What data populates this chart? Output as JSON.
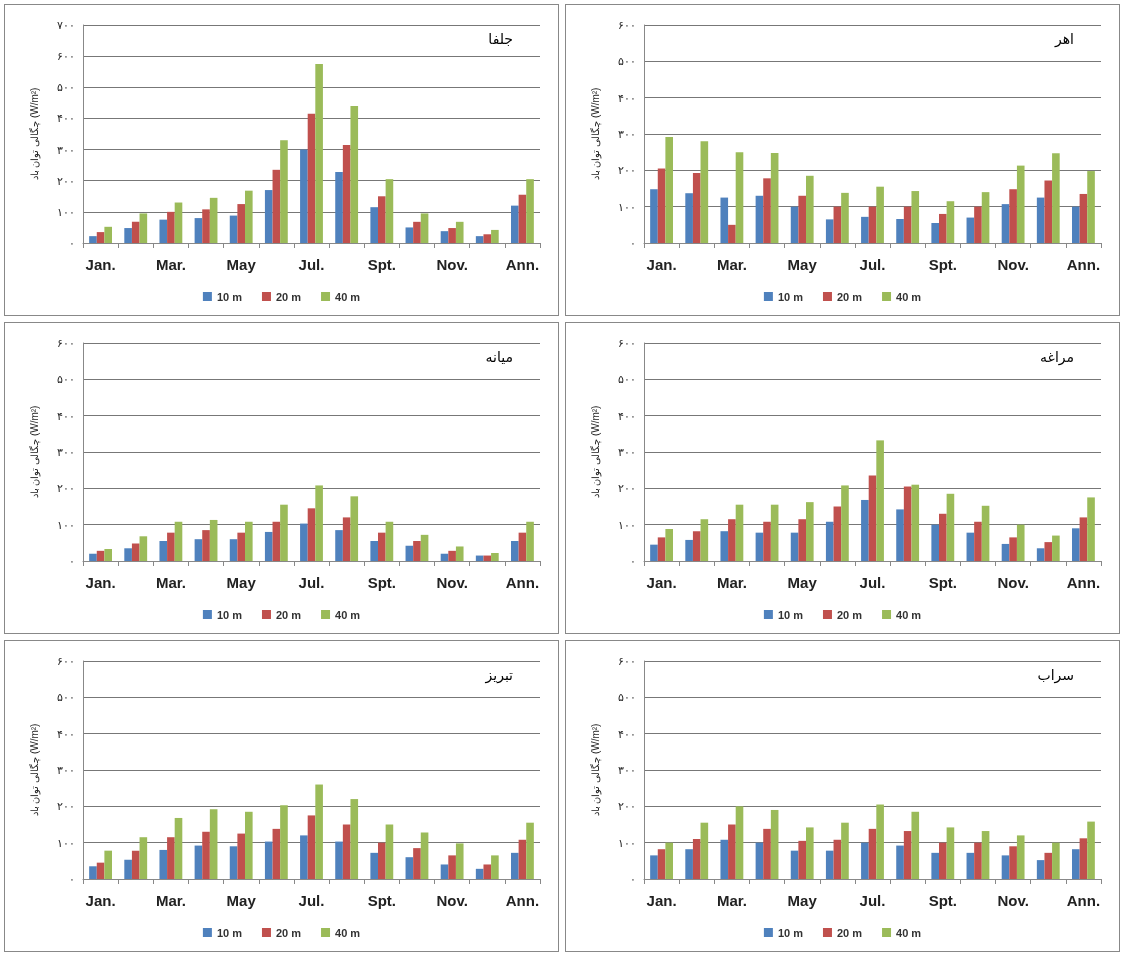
{
  "chart_data": [
    {
      "type": "bar",
      "title": "جلفا",
      "ylabel": "چگالی توان باد (W/m²)",
      "categories": [
        "Jan.",
        null,
        "Mar.",
        null,
        "May",
        null,
        "Jul.",
        null,
        "Spt.",
        null,
        "Nov.",
        null,
        "Ann."
      ],
      "series": [
        {
          "name": "10 m",
          "color": "#4f81bd",
          "values": [
            22,
            48,
            75,
            80,
            88,
            170,
            300,
            228,
            115,
            50,
            38,
            22,
            120
          ]
        },
        {
          "name": "20 m",
          "color": "#c0504d",
          "values": [
            35,
            68,
            100,
            108,
            125,
            235,
            415,
            315,
            150,
            68,
            48,
            28,
            155
          ]
        },
        {
          "name": "40 m",
          "color": "#9bbb59",
          "values": [
            52,
            95,
            130,
            145,
            168,
            330,
            575,
            440,
            205,
            95,
            68,
            42,
            205
          ]
        }
      ],
      "ylim": [
        0,
        700
      ],
      "yticks": [
        {
          "value": 0,
          "label": "۰"
        },
        {
          "value": 100,
          "label": "۱۰۰"
        },
        {
          "value": 200,
          "label": "۲۰۰"
        },
        {
          "value": 300,
          "label": "۳۰۰"
        },
        {
          "value": 400,
          "label": "۴۰۰"
        },
        {
          "value": 500,
          "label": "۵۰۰"
        },
        {
          "value": 600,
          "label": "۶۰۰"
        },
        {
          "value": 700,
          "label": "۷۰۰"
        }
      ],
      "grid": "y",
      "legend": "bottom"
    },
    {
      "type": "bar",
      "title": "اهر",
      "ylabel": "چگالی توان باد (W/m²)",
      "categories": [
        "Jan.",
        null,
        "Mar.",
        null,
        "May",
        null,
        "Jul.",
        null,
        "Spt.",
        null,
        "Nov.",
        null,
        "Ann."
      ],
      "series": [
        {
          "name": "10 m",
          "color": "#4f81bd",
          "values": [
            148,
            137,
            125,
            130,
            100,
            65,
            72,
            66,
            55,
            70,
            107,
            125,
            100
          ]
        },
        {
          "name": "20 m",
          "color": "#c0504d",
          "values": [
            205,
            193,
            50,
            178,
            130,
            100,
            100,
            100,
            80,
            100,
            148,
            172,
            135
          ]
        },
        {
          "name": "40 m",
          "color": "#9bbb59",
          "values": [
            292,
            280,
            250,
            248,
            185,
            138,
            155,
            143,
            115,
            140,
            213,
            247,
            198
          ]
        }
      ],
      "ylim": [
        0,
        600
      ],
      "yticks": [
        {
          "value": 0,
          "label": "۰"
        },
        {
          "value": 100,
          "label": "۱۰۰"
        },
        {
          "value": 200,
          "label": "۲۰۰"
        },
        {
          "value": 300,
          "label": "۳۰۰"
        },
        {
          "value": 400,
          "label": "۴۰۰"
        },
        {
          "value": 500,
          "label": "۵۰۰"
        },
        {
          "value": 600,
          "label": "۶۰۰"
        }
      ],
      "grid": "y",
      "legend": "bottom"
    },
    {
      "type": "bar",
      "title": "میانه",
      "ylabel": "چگالی توان باد (W/m²)",
      "categories": [
        "Jan.",
        null,
        "Mar.",
        null,
        "May",
        null,
        "Jul.",
        null,
        "Spt.",
        null,
        "Nov.",
        null,
        "Ann."
      ],
      "series": [
        {
          "name": "10 m",
          "color": "#4f81bd",
          "values": [
            20,
            35,
            55,
            60,
            60,
            80,
            103,
            85,
            55,
            42,
            20,
            15,
            55
          ]
        },
        {
          "name": "20 m",
          "color": "#c0504d",
          "values": [
            28,
            48,
            78,
            85,
            78,
            108,
            145,
            120,
            78,
            55,
            28,
            15,
            78
          ]
        },
        {
          "name": "40 m",
          "color": "#9bbb59",
          "values": [
            33,
            68,
            108,
            113,
            108,
            155,
            208,
            178,
            108,
            72,
            40,
            22,
            108
          ]
        }
      ],
      "ylim": [
        0,
        600
      ],
      "yticks": [
        {
          "value": 0,
          "label": "۰"
        },
        {
          "value": 100,
          "label": "۱۰۰"
        },
        {
          "value": 200,
          "label": "۲۰۰"
        },
        {
          "value": 300,
          "label": "۳۰۰"
        },
        {
          "value": 400,
          "label": "۴۰۰"
        },
        {
          "value": 500,
          "label": "۵۰۰"
        },
        {
          "value": 600,
          "label": "۶۰۰"
        }
      ],
      "grid": "y",
      "legend": "bottom"
    },
    {
      "type": "bar",
      "title": "مراغه",
      "ylabel": "چگالی توان باد (W/m²)",
      "categories": [
        "Jan.",
        null,
        "Mar.",
        null,
        "May",
        null,
        "Jul.",
        null,
        "Spt.",
        null,
        "Nov.",
        null,
        "Ann."
      ],
      "series": [
        {
          "name": "10 m",
          "color": "#4f81bd",
          "values": [
            45,
            58,
            82,
            78,
            78,
            108,
            168,
            142,
            100,
            78,
            47,
            35,
            90
          ]
        },
        {
          "name": "20 m",
          "color": "#c0504d",
          "values": [
            65,
            82,
            115,
            108,
            115,
            150,
            235,
            205,
            130,
            108,
            65,
            52,
            120
          ]
        },
        {
          "name": "40 m",
          "color": "#9bbb59",
          "values": [
            88,
            115,
            155,
            155,
            162,
            208,
            332,
            210,
            185,
            152,
            100,
            70,
            175
          ]
        }
      ],
      "ylim": [
        0,
        600
      ],
      "yticks": [
        {
          "value": 0,
          "label": "۰"
        },
        {
          "value": 100,
          "label": "۱۰۰"
        },
        {
          "value": 200,
          "label": "۲۰۰"
        },
        {
          "value": 300,
          "label": "۳۰۰"
        },
        {
          "value": 400,
          "label": "۴۰۰"
        },
        {
          "value": 500,
          "label": "۵۰۰"
        },
        {
          "value": 600,
          "label": "۶۰۰"
        }
      ],
      "grid": "y",
      "legend": "bottom"
    },
    {
      "type": "bar",
      "title": "تبریز",
      "ylabel": "چگالی توان باد (W/m²)",
      "categories": [
        "Jan.",
        null,
        "Mar.",
        null,
        "May",
        null,
        "Jul.",
        null,
        "Spt.",
        null,
        "Nov.",
        null,
        "Ann."
      ],
      "series": [
        {
          "name": "10 m",
          "color": "#4f81bd",
          "values": [
            35,
            53,
            80,
            92,
            90,
            103,
            120,
            103,
            72,
            60,
            40,
            28,
            72
          ]
        },
        {
          "name": "20 m",
          "color": "#c0504d",
          "values": [
            45,
            78,
            115,
            130,
            125,
            138,
            175,
            150,
            100,
            85,
            65,
            40,
            108
          ]
        },
        {
          "name": "40 m",
          "color": "#9bbb59",
          "values": [
            78,
            115,
            168,
            192,
            185,
            203,
            260,
            220,
            150,
            128,
            98,
            65,
            155
          ]
        }
      ],
      "ylim": [
        0,
        600
      ],
      "yticks": [
        {
          "value": 0,
          "label": "۰"
        },
        {
          "value": 100,
          "label": "۱۰۰"
        },
        {
          "value": 200,
          "label": "۲۰۰"
        },
        {
          "value": 300,
          "label": "۳۰۰"
        },
        {
          "value": 400,
          "label": "۴۰۰"
        },
        {
          "value": 500,
          "label": "۵۰۰"
        },
        {
          "value": 600,
          "label": "۶۰۰"
        }
      ],
      "grid": "y",
      "legend": "bottom"
    },
    {
      "type": "bar",
      "title": "سراب",
      "ylabel": "چگالی توان باد (W/m²)",
      "categories": [
        "Jan.",
        null,
        "Mar.",
        null,
        "May",
        null,
        "Jul.",
        null,
        "Spt.",
        null,
        "Nov.",
        null,
        "Ann."
      ],
      "series": [
        {
          "name": "10 m",
          "color": "#4f81bd",
          "values": [
            65,
            82,
            108,
            100,
            78,
            78,
            100,
            92,
            72,
            72,
            65,
            52,
            82
          ]
        },
        {
          "name": "20 m",
          "color": "#c0504d",
          "values": [
            82,
            110,
            150,
            138,
            105,
            108,
            138,
            132,
            100,
            100,
            90,
            72,
            112
          ]
        },
        {
          "name": "40 m",
          "color": "#9bbb59",
          "values": [
            100,
            155,
            200,
            190,
            142,
            155,
            205,
            185,
            142,
            132,
            120,
            100,
            158
          ]
        }
      ],
      "ylim": [
        0,
        600
      ],
      "yticks": [
        {
          "value": 0,
          "label": "۰"
        },
        {
          "value": 100,
          "label": "۱۰۰"
        },
        {
          "value": 200,
          "label": "۲۰۰"
        },
        {
          "value": 300,
          "label": "۳۰۰"
        },
        {
          "value": 400,
          "label": "۴۰۰"
        },
        {
          "value": 500,
          "label": "۵۰۰"
        },
        {
          "value": 600,
          "label": "۶۰۰"
        }
      ],
      "grid": "y",
      "legend": "bottom"
    }
  ]
}
